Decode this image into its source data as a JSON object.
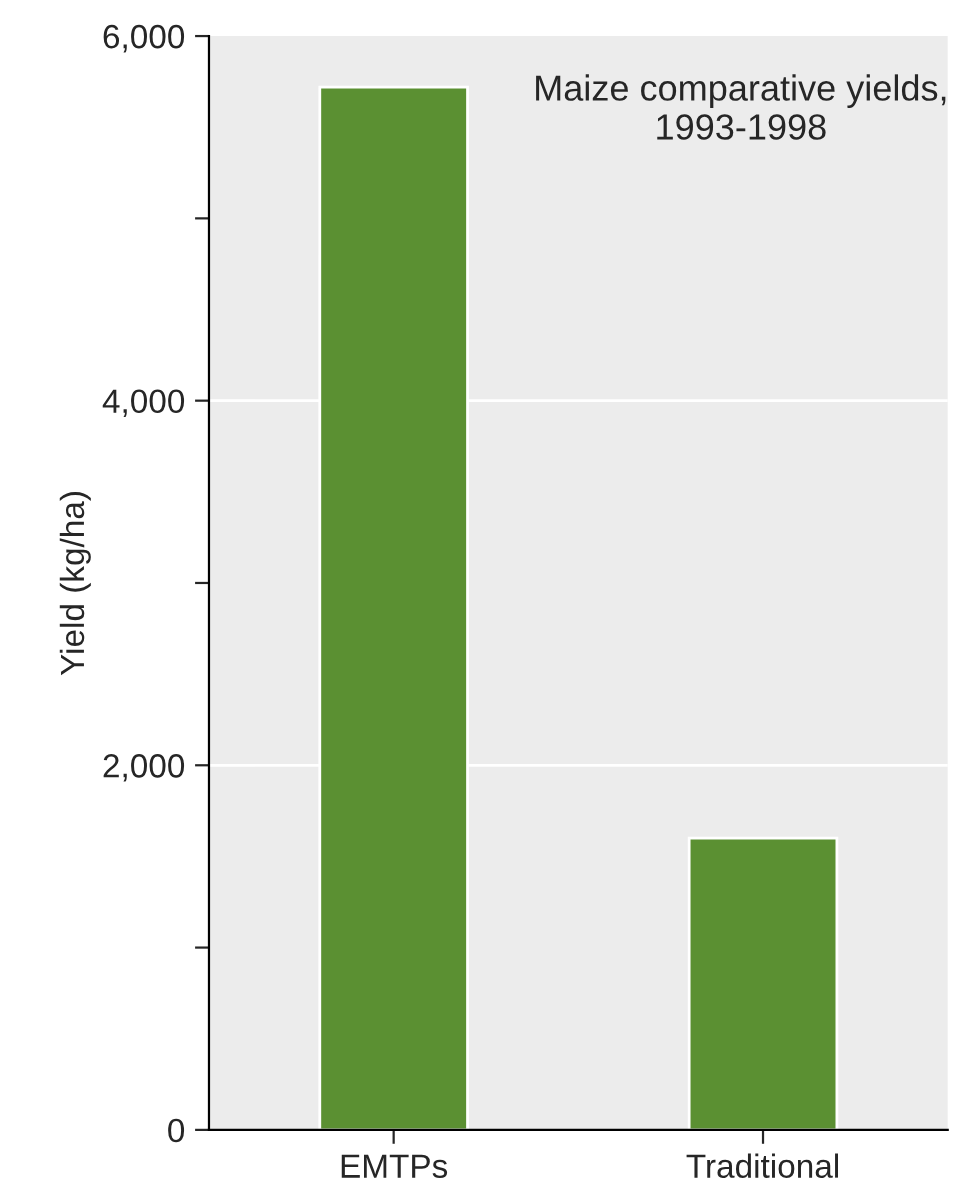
{
  "chart_data": {
    "type": "bar",
    "title": "Maize comparative yields,\n1993-1998",
    "ylabel": "Yield (kg/ha)",
    "categories": [
      "EMTPs",
      "Traditional"
    ],
    "values": [
      5720,
      1600
    ],
    "color": "#5b9032",
    "ylim": [
      0,
      6000
    ],
    "yticks": [
      {
        "value": 0,
        "label": "0"
      },
      {
        "value": 1000,
        "label": null
      },
      {
        "value": 2000,
        "label": "2,000"
      },
      {
        "value": 3000,
        "label": null
      },
      {
        "value": 4000,
        "label": "4,000"
      },
      {
        "value": 5000,
        "label": null
      },
      {
        "value": 6000,
        "label": "6,000"
      }
    ],
    "grid": "y"
  }
}
